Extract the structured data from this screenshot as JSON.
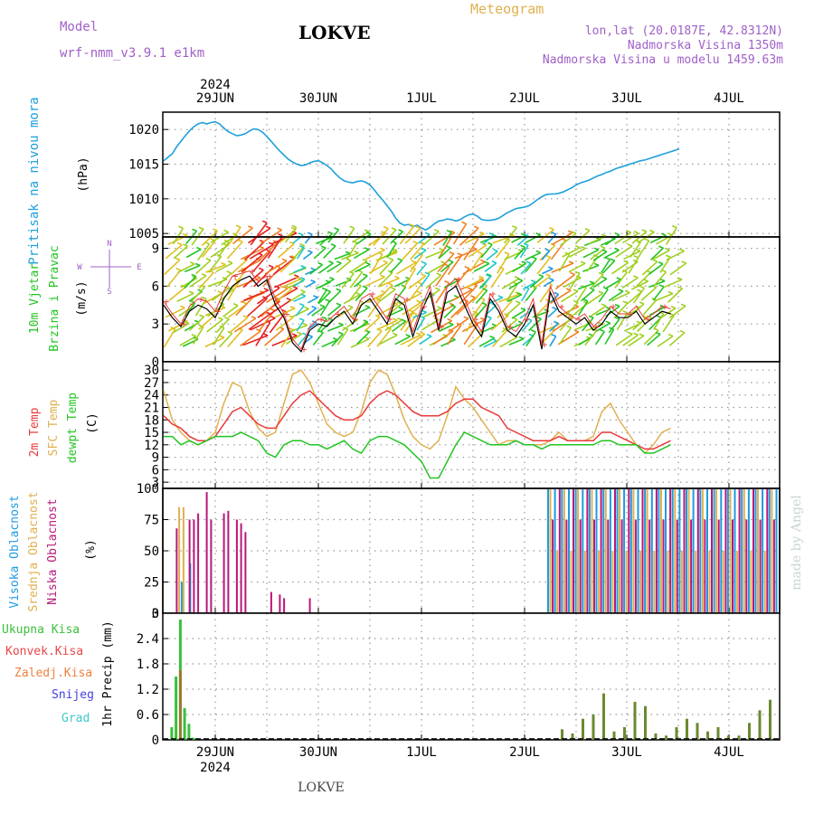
{
  "header": {
    "model_label": "Model",
    "model_name": "wrf-nmm_v3.9.1 e1km",
    "station": "LOKVE",
    "title": "Meteogram",
    "coords": "lon,lat (20.0187E, 42.8312N)",
    "elevation": "Nadmorska Visina 1350m",
    "model_elevation": "Nadmorska Visina u modelu 1459.63m"
  },
  "footer": {
    "station": "LOKVE",
    "credit": "made by Angel"
  },
  "timeline": {
    "year": "2024",
    "days": [
      "29JUN",
      "30JUN",
      "1JUL",
      "2JUL",
      "3JUL",
      "4JUL"
    ]
  },
  "colors": {
    "pressure": "#1ea0dc",
    "temp2m": "#e83a3a",
    "sfc": "#e0b050",
    "dewpt": "#22c422",
    "high_cloud": "#1e9be0",
    "mid_cloud": "#e0b050",
    "low_cloud": "#b8187a",
    "precip_total": "#3bbf3b",
    "precip_conv": "#e84848",
    "precip_ice": "#f08040",
    "snow": "#4040e0",
    "hail": "#40c8c8"
  },
  "chart_data": [
    {
      "type": "line",
      "name": "pressure",
      "ylabel_1": "Pritisak na nivou mora",
      "ylabel_unit": "(hPa)",
      "yticks": [
        1005,
        1010,
        1015,
        1020
      ],
      "ylim": [
        1004.5,
        1022.5
      ],
      "x_days": [
        0.0,
        0.5,
        1.0,
        1.5,
        2.0,
        2.5,
        3.0,
        3.5,
        4.0,
        4.5,
        5.0,
        5.5,
        6.0,
        6.5,
        7.0,
        7.5,
        8.0,
        8.5,
        9.0,
        9.5,
        10.0,
        10.5,
        11.0,
        11.5,
        12.0,
        12.5,
        13.0,
        13.5,
        14.0,
        14.5,
        15.0,
        15.5,
        16.0,
        16.5,
        17.0,
        17.5,
        18.0,
        18.5,
        19.0,
        19.5,
        20.0,
        20.5,
        21.0,
        21.5,
        22.0,
        22.5,
        23.0,
        23.5,
        24.0,
        24.5,
        25.0,
        25.5,
        26.0,
        26.5,
        27.0,
        27.5,
        28.0,
        28.5,
        29.0,
        29.5,
        30.0,
        30.5,
        31.0,
        31.5,
        32.0,
        32.5,
        33.0,
        33.5,
        34.0,
        34.5,
        35.0,
        35.5,
        36.0,
        36.5,
        37.0,
        37.5,
        38.0,
        38.5,
        39.0,
        39.5,
        40.0,
        40.5,
        41.0,
        41.5,
        42.0,
        42.5,
        43.0,
        43.5,
        44.0,
        44.5,
        45.0,
        45.5,
        46.0,
        46.5,
        47.0,
        47.5,
        48.0,
        48.5,
        49.0,
        49.5,
        50.0,
        50.5,
        51.0,
        51.5,
        52.0,
        52.5,
        53.0,
        53.5,
        54.0,
        54.5,
        55.0,
        55.5,
        56.0,
        56.5,
        57.0,
        57.5,
        58.0,
        58.5,
        59.0,
        59.5,
        60.0
      ],
      "values": [
        1015.5,
        1016.0,
        1016.5,
        1017.5,
        1018.3,
        1019.1,
        1019.8,
        1020.4,
        1020.8,
        1021.0,
        1020.8,
        1021.0,
        1021.1,
        1020.8,
        1020.2,
        1019.7,
        1019.4,
        1019.1,
        1019.2,
        1019.4,
        1019.8,
        1020.1,
        1020.0,
        1019.6,
        1019.0,
        1018.3,
        1017.6,
        1016.9,
        1016.3,
        1015.7,
        1015.3,
        1015.0,
        1014.8,
        1014.9,
        1015.2,
        1015.4,
        1015.5,
        1015.2,
        1014.8,
        1014.3,
        1013.6,
        1013.0,
        1012.6,
        1012.4,
        1012.3,
        1012.5,
        1012.6,
        1012.4,
        1012.0,
        1011.3,
        1010.5,
        1009.8,
        1009.0,
        1008.2,
        1007.2,
        1006.5,
        1006.2,
        1006.3,
        1006.0,
        1006.2,
        1005.8,
        1005.5,
        1005.9,
        1006.4,
        1006.8,
        1006.9,
        1007.1,
        1007.0,
        1006.8,
        1007.0,
        1007.4,
        1007.7,
        1007.8,
        1007.5,
        1007.0,
        1006.9,
        1006.9,
        1007.0,
        1007.2,
        1007.6,
        1008.0,
        1008.3,
        1008.6,
        1008.7,
        1008.8,
        1009.0,
        1009.4,
        1009.9,
        1010.3,
        1010.6,
        1010.7,
        1010.7,
        1010.8,
        1011.0,
        1011.3,
        1011.6,
        1012.0,
        1012.3,
        1012.5,
        1012.7,
        1013.0,
        1013.3,
        1013.5,
        1013.8,
        1014.0,
        1014.3,
        1014.5,
        1014.7,
        1014.9,
        1015.1,
        1015.3,
        1015.5,
        1015.6,
        1015.8,
        1016.0,
        1016.2,
        1016.4,
        1016.6,
        1016.8,
        1017.0,
        1017.2
      ]
    },
    {
      "type": "line",
      "name": "wind",
      "ylabel_1": "10m Vjetar",
      "ylabel_2": "Brzina i Pravac",
      "ylabel_unit": "(m/s)",
      "compass": [
        "N",
        "E",
        "S",
        "W"
      ],
      "yticks": [
        0,
        3,
        6,
        9
      ],
      "ylim": [
        0,
        9.9
      ],
      "x_days": [
        0,
        2,
        4,
        6,
        8,
        10,
        12,
        14,
        16,
        18,
        20,
        22,
        24,
        26,
        28,
        30,
        32,
        34,
        36,
        38,
        40,
        42,
        44,
        46,
        48,
        50,
        52,
        54,
        56,
        58,
        60,
        62,
        64,
        66,
        68,
        70,
        72,
        74,
        76,
        78,
        80,
        82,
        84,
        86,
        88,
        90,
        92,
        94,
        96,
        98,
        100,
        102,
        104,
        106,
        108,
        110,
        112,
        114,
        116,
        118
      ],
      "speed": [
        4.5,
        3.5,
        2.8,
        4.0,
        4.5,
        4.2,
        3.5,
        5.0,
        6.0,
        6.5,
        6.8,
        6.0,
        6.5,
        4.5,
        3.5,
        1.5,
        0.8,
        2.5,
        3.0,
        2.8,
        3.5,
        4.0,
        3.0,
        4.5,
        5.0,
        4.0,
        3.0,
        5.0,
        4.5,
        2.0,
        4.0,
        5.5,
        2.5,
        5.5,
        6.0,
        4.5,
        3.0,
        2.0,
        5.0,
        4.0,
        2.5,
        2.0,
        3.0,
        4.5,
        1.0,
        5.5,
        4.0,
        3.5,
        3.0,
        3.5,
        2.5,
        3.0,
        4.0,
        3.5,
        3.5,
        4.0,
        3.0,
        3.5,
        4.0,
        3.8
      ],
      "gust": [
        4.8,
        3.8,
        3.0,
        4.4,
        5.0,
        4.8,
        4.0,
        5.6,
        6.8,
        7.0,
        7.2,
        6.4,
        6.8,
        5.0,
        3.8,
        1.8,
        1.0,
        2.8,
        3.4,
        3.2,
        3.8,
        4.4,
        3.4,
        5.0,
        5.4,
        4.4,
        3.4,
        5.4,
        5.0,
        2.4,
        4.4,
        6.0,
        2.8,
        6.0,
        6.6,
        5.0,
        3.4,
        2.4,
        5.4,
        4.4,
        2.8,
        2.4,
        3.4,
        5.0,
        1.4,
        6.0,
        4.4,
        3.8,
        3.4,
        3.8,
        2.8,
        3.4,
        4.4,
        3.8,
        3.8,
        4.4,
        3.4,
        3.8,
        4.4,
        4.2
      ]
    },
    {
      "type": "line",
      "name": "temperature",
      "ylabel_1": "2m Temp",
      "ylabel_2": "SFC Temp",
      "ylabel_3": "dewpt Temp",
      "ylabel_unit": "(C)",
      "yticks": [
        3,
        6,
        9,
        12,
        15,
        18,
        21,
        24,
        27,
        30
      ],
      "ylim": [
        1.5,
        32
      ],
      "x_days": [
        0,
        2,
        4,
        6,
        8,
        10,
        12,
        14,
        16,
        18,
        20,
        22,
        24,
        26,
        28,
        30,
        32,
        34,
        36,
        38,
        40,
        42,
        44,
        46,
        48,
        50,
        52,
        54,
        56,
        58,
        60,
        62,
        64,
        66,
        68,
        70,
        72,
        74,
        76,
        78,
        80,
        82,
        84,
        86,
        88,
        90,
        92,
        94,
        96,
        98,
        100,
        102,
        104,
        106,
        108,
        110,
        112,
        114,
        116,
        118
      ],
      "series": [
        {
          "name": "2m Temp",
          "values": [
            19,
            17,
            16,
            14,
            13,
            13,
            14,
            17,
            20,
            21,
            19,
            17,
            16,
            16,
            19,
            22,
            24,
            25,
            23,
            21,
            19,
            18,
            18,
            19,
            22,
            24,
            25,
            24,
            22,
            20,
            19,
            19,
            19,
            20,
            22,
            23,
            23,
            21,
            20,
            19,
            16,
            15,
            14,
            13,
            13,
            13,
            14,
            13,
            13,
            13,
            13,
            15,
            15,
            14,
            13,
            12,
            11,
            11,
            12,
            13
          ]
        },
        {
          "name": "SFC Temp",
          "values": [
            25,
            18,
            15,
            13,
            12,
            13,
            15,
            22,
            27,
            26,
            20,
            16,
            14,
            15,
            22,
            29,
            30,
            27,
            22,
            17,
            15,
            14,
            15,
            20,
            27,
            30,
            29,
            24,
            18,
            14,
            12,
            11,
            13,
            19,
            26,
            23,
            21,
            18,
            15,
            12,
            13,
            13,
            12,
            12,
            12,
            13,
            15,
            13,
            13,
            13,
            14,
            20,
            22,
            18,
            15,
            12,
            10,
            12,
            15,
            16
          ]
        },
        {
          "name": "dewpt Temp",
          "values": [
            14,
            14,
            12,
            13,
            12,
            13,
            14,
            14,
            14,
            15,
            14,
            13,
            10,
            9,
            12,
            13,
            13,
            12,
            12,
            11,
            12,
            13,
            11,
            10,
            13,
            14,
            14,
            13,
            12,
            10,
            8,
            4,
            4,
            8,
            12,
            15,
            14,
            13,
            12,
            12,
            12,
            13,
            12,
            12,
            11,
            12,
            12,
            12,
            12,
            12,
            12,
            13,
            13,
            12,
            12,
            12,
            10,
            10,
            11,
            12
          ]
        }
      ]
    },
    {
      "type": "bar",
      "name": "clouds",
      "ylabel_1": "Visoka Oblacnost",
      "ylabel_2": "Srednja Oblacnost",
      "ylabel_3": "Niska Oblacnost",
      "ylabel_unit": "(%)",
      "yticks": [
        0,
        25,
        50,
        75,
        100
      ],
      "ylim": [
        0,
        100
      ],
      "x_days": [
        0.5,
        1.5,
        2.5,
        3.5,
        4.5,
        5.5,
        6.5,
        7.5,
        8.5,
        9.5,
        10.5,
        11.5,
        12.5,
        13.5,
        14.5,
        15.5,
        16.5,
        17.5,
        18.5,
        19.5,
        20.5,
        21.5,
        22.5,
        23.5,
        24.5,
        25.5,
        26.5,
        27.5,
        28.5,
        29.5,
        30.5,
        31.5,
        32.5,
        33.5,
        34.5,
        35.5,
        36.5,
        37.5,
        38.5,
        39.5,
        40.5,
        41.5,
        42.5,
        43.5,
        44.5,
        45.5,
        46.5,
        47.5,
        48.5,
        49.5,
        50.5,
        51.5,
        52.5,
        53.5,
        54.5,
        55.5,
        56.5,
        57.5,
        58.5,
        59.5
      ],
      "series": [
        {
          "name": "Visoka Oblacnost",
          "values": [
            0,
            0,
            25,
            0,
            40,
            0,
            0,
            0,
            0,
            0,
            0,
            0,
            0,
            0,
            0,
            0,
            0,
            0,
            0,
            0,
            0,
            0,
            0,
            0,
            0,
            0,
            0,
            0,
            0,
            0,
            0,
            0,
            0,
            0,
            0,
            0,
            0,
            0,
            0,
            0,
            0,
            0,
            0,
            0,
            0,
            0,
            0,
            0,
            0,
            0,
            0,
            0,
            0,
            0,
            0,
            0,
            0,
            0,
            0,
            0
          ]
        },
        {
          "name": "Srednja Oblacnost",
          "values": [
            0,
            85,
            85,
            0,
            0,
            0,
            0,
            0,
            0,
            0,
            0,
            0,
            0,
            0,
            0,
            0,
            0,
            0,
            0,
            0,
            0,
            0,
            0,
            0,
            0,
            0,
            0,
            0,
            0,
            0,
            0,
            0,
            0,
            0,
            0,
            0,
            0,
            0,
            0,
            0,
            0,
            0,
            0,
            0,
            0,
            0,
            0,
            0,
            0,
            0,
            0,
            0,
            0,
            0,
            0,
            0,
            0,
            0,
            0,
            0
          ]
        },
        {
          "name": "Niska Oblacnost",
          "values": [
            68,
            0,
            0,
            75,
            75,
            80,
            0,
            97,
            75,
            0,
            0,
            80,
            82,
            0,
            75,
            72,
            65,
            0,
            0,
            0,
            0,
            0,
            17,
            0,
            15,
            12,
            0,
            0,
            0,
            0,
            0,
            12,
            0,
            0,
            0,
            0,
            0,
            0,
            0,
            0,
            0,
            0,
            0,
            0,
            0,
            0,
            0,
            0,
            0,
            0,
            0,
            0,
            0,
            0,
            0,
            0,
            0,
            0,
            0,
            0
          ]
        }
      ]
    },
    {
      "type": "bar",
      "name": "precip",
      "ylabel_1": "Ukupna Kisa",
      "ylabel_2": "Konvek.Kisa",
      "ylabel_3": "Zaledj.Kisa",
      "ylabel_4": "Snijeg",
      "ylabel_5": "Grad",
      "ylabel_unit": "1hr Precip (mm)",
      "yticks": [
        0,
        0.6,
        1.2,
        1.8,
        2.4,
        3
      ],
      "ytick_labels": [
        "0",
        "0.6",
        "1.2",
        "1.8",
        "2.4",
        "3"
      ],
      "ylim": [
        0,
        3
      ],
      "x_days": [
        0.5,
        1.5,
        2.5,
        3.5,
        4.5,
        5.5,
        6.5,
        7.5,
        8.5,
        9.5
      ],
      "series": [
        {
          "name": "Ukupna Kisa",
          "values": [
            0.3,
            1.5,
            2.85,
            0.75,
            0.38,
            0.05,
            0.0,
            0.0,
            0.0,
            0.0
          ]
        },
        {
          "name": "Konvek.Kisa",
          "values": [
            0.0,
            0.0,
            1.65,
            0.0,
            0.0,
            0.0,
            0.0,
            0.0,
            0.0,
            0.0
          ]
        }
      ]
    }
  ]
}
